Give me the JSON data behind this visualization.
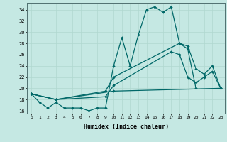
{
  "xlabel": "Humidex (Indice chaleur)",
  "background_color": "#c5e8e3",
  "grid_color": "#b0d8d0",
  "line_color": "#006868",
  "yticks": [
    16,
    18,
    20,
    22,
    24,
    26,
    28,
    30,
    32,
    34
  ],
  "xticks": [
    0,
    1,
    2,
    3,
    4,
    5,
    6,
    7,
    8,
    9,
    10,
    11,
    12,
    13,
    14,
    15,
    16,
    17,
    18,
    19,
    20,
    21,
    22,
    23
  ],
  "series1_x": [
    0,
    1,
    2,
    3,
    4,
    5,
    6,
    7,
    8,
    9,
    10,
    11,
    12,
    13,
    14,
    15,
    16,
    17,
    18,
    19,
    20
  ],
  "series1_y": [
    19,
    17.5,
    16.5,
    17.5,
    16.5,
    16.5,
    16.5,
    16.0,
    16.5,
    16.5,
    24.0,
    29.0,
    24.0,
    29.5,
    34.0,
    34.5,
    33.5,
    34.5,
    28.0,
    27.0,
    20.0
  ],
  "series2_x": [
    0,
    3,
    9,
    10,
    18,
    19,
    20,
    21,
    22,
    23
  ],
  "series2_y": [
    19,
    18,
    19.5,
    22,
    28,
    27.5,
    23.5,
    22.5,
    24.0,
    20.0
  ],
  "series3_x": [
    0,
    3,
    9,
    10,
    17,
    18,
    19,
    20,
    21,
    22,
    23
  ],
  "series3_y": [
    19,
    18,
    18.5,
    20.5,
    26.5,
    26.0,
    22.0,
    21.0,
    22.0,
    23.0,
    20.0
  ],
  "series4_x": [
    0,
    3,
    10,
    23
  ],
  "series4_y": [
    19,
    18,
    19.5,
    20.0
  ]
}
